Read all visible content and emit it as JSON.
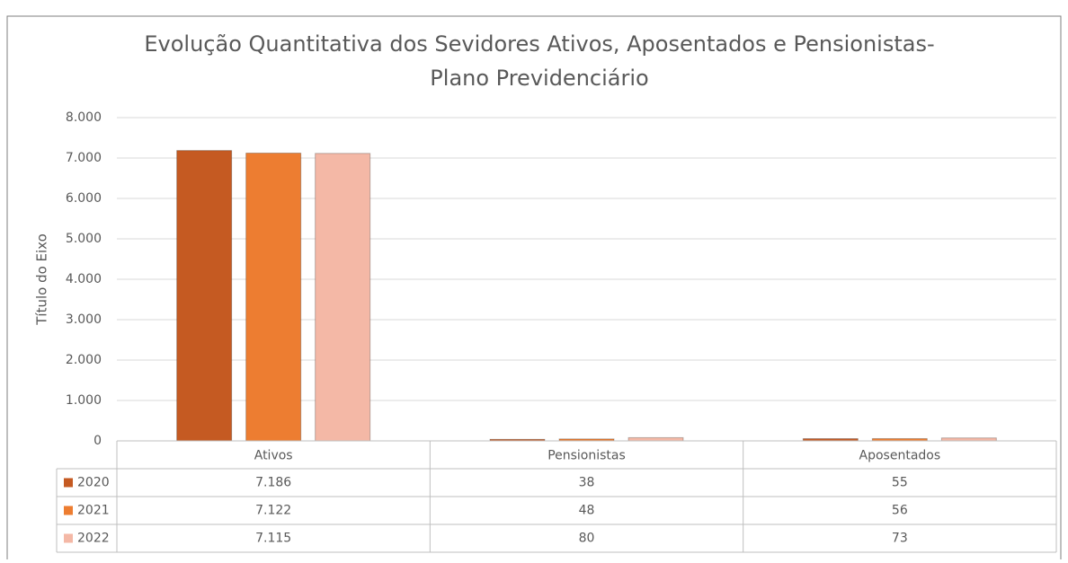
{
  "chart_data": {
    "type": "bar",
    "title": [
      "Evolução Quantitativa dos Sevidores Ativos, Aposentados e Pensionistas-",
      "Plano Previdenciário"
    ],
    "y_label": "Título do Eixo",
    "categories": [
      "Ativos",
      "Pensionistas",
      "Aposentados"
    ],
    "series": [
      {
        "name": "2020",
        "color": "#c55a22",
        "values": [
          7186,
          38,
          55
        ],
        "value_labels": [
          "7.186",
          "38",
          "55"
        ]
      },
      {
        "name": "2021",
        "color": "#ed7d31",
        "values": [
          7122,
          48,
          56
        ],
        "value_labels": [
          "7.122",
          "48",
          "56"
        ]
      },
      {
        "name": "2022",
        "color": "#f4b8a6",
        "values": [
          7115,
          80,
          73
        ],
        "value_labels": [
          "7.115",
          "80",
          "73"
        ]
      }
    ],
    "ylim": [
      0,
      8000
    ],
    "yticks": [
      0,
      {
        "value": 1000,
        "label": "1.000"
      },
      {
        "value": 2000,
        "label": "2.000"
      },
      {
        "value": 3000,
        "label": "3.000"
      },
      {
        "value": 4000,
        "label": "4.000"
      },
      {
        "value": 5000,
        "label": "5.000"
      },
      {
        "value": 6000,
        "label": "6.000"
      },
      {
        "value": 7000,
        "label": "7.000"
      },
      {
        "value": 8000,
        "label": "8.000"
      }
    ],
    "grid": true
  }
}
